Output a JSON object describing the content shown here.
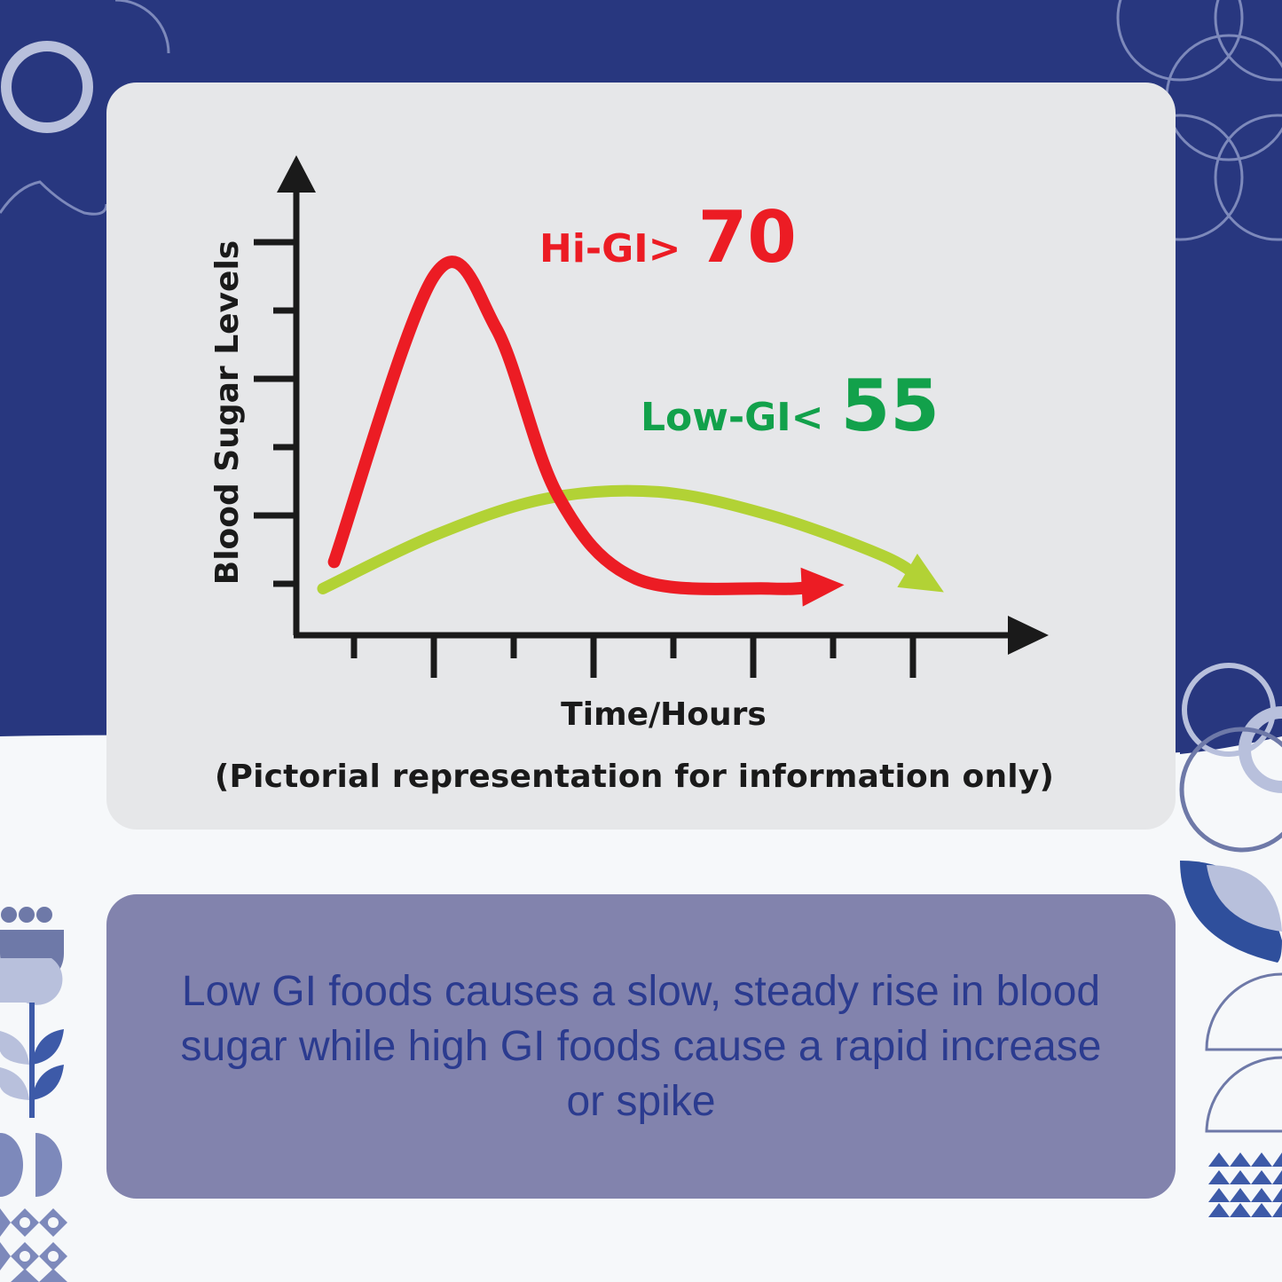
{
  "chart_data": {
    "type": "line",
    "xlabel": "Time/Hours",
    "ylabel": "Blood Sugar Levels",
    "note": "(Pictorial representation for information only)",
    "series": [
      {
        "name": "Hi-GI",
        "label_prefix": "Hi-GI>",
        "label_value": "70",
        "color": "#ec1c24",
        "points": [
          [
            0.1,
            0.7
          ],
          [
            1.0,
            5.0
          ],
          [
            1.55,
            4.2
          ],
          [
            2.1,
            1.7
          ],
          [
            2.8,
            0.45
          ],
          [
            4.0,
            0.3
          ],
          [
            4.6,
            0.35
          ]
        ]
      },
      {
        "name": "Low-GI",
        "label_prefix": "Low-GI<",
        "label_value": "55",
        "color": "#b2d235",
        "points": [
          [
            0.0,
            0.3
          ],
          [
            1.0,
            1.1
          ],
          [
            2.0,
            1.65
          ],
          [
            3.0,
            1.75
          ],
          [
            4.0,
            1.4
          ],
          [
            5.0,
            0.8
          ],
          [
            5.5,
            0.3
          ]
        ]
      }
    ],
    "x_ticks": 8,
    "y_ticks": 6,
    "grid": false,
    "axis_color": "#1a1a1a"
  },
  "message": "Low GI foods causes a slow, steady rise in blood sugar while high GI foods cause a rapid increase or spike"
}
